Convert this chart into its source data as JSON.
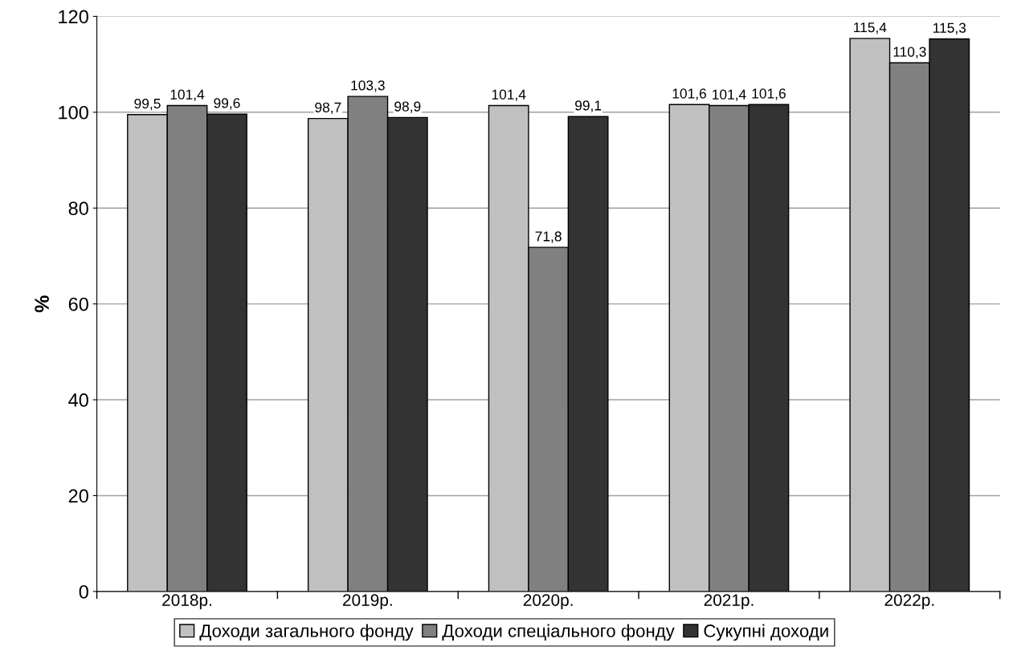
{
  "chart_data": {
    "type": "bar",
    "ylabel": "%",
    "categories": [
      "2018р.",
      "2019р.",
      "2020р.",
      "2021р.",
      "2022р."
    ],
    "series": [
      {
        "name": "Доходи загального фонду",
        "color": "#c0c0c0",
        "values": [
          99.5,
          98.7,
          101.4,
          101.6,
          115.4
        ],
        "value_labels": [
          "99,5",
          "98,7",
          "101,4",
          "101,6",
          "115,4"
        ]
      },
      {
        "name": "Доходи спеціального фонду",
        "color": "#808080",
        "values": [
          101.4,
          103.3,
          71.8,
          101.4,
          110.3
        ],
        "value_labels": [
          "101,4",
          "103,3",
          "71,8",
          "101,4",
          "110,3"
        ]
      },
      {
        "name": "Сукупні доходи",
        "color": "#333333",
        "values": [
          99.6,
          98.9,
          99.1,
          101.6,
          115.3
        ],
        "value_labels": [
          "99,6",
          "98,9",
          "99,1",
          "101,6",
          "115,3"
        ]
      }
    ],
    "ylim": [
      0,
      120
    ],
    "yticks": [
      0,
      20,
      40,
      60,
      80,
      100,
      120
    ],
    "grid": "y",
    "legend": "bottom"
  }
}
